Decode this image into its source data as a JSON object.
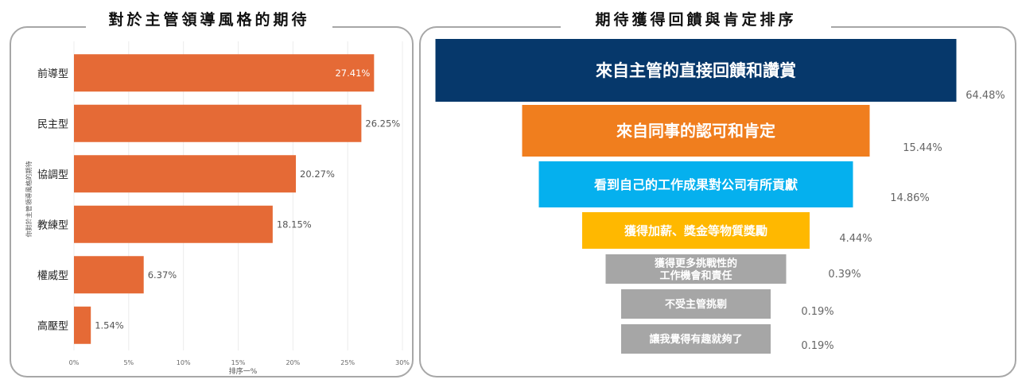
{
  "chart_data": [
    {
      "type": "bar",
      "orientation": "horizontal",
      "title": "對於主管領導風格的期待",
      "ylabel": "你對於主管領導風格的期待",
      "xlabel": "排序一%",
      "categories": [
        "前導型",
        "民主型",
        "協調型",
        "教練型",
        "權威型",
        "高壓型"
      ],
      "values": [
        27.41,
        26.25,
        20.27,
        18.15,
        6.37,
        1.54
      ],
      "value_labels": [
        "27.41%",
        "26.25%",
        "20.27%",
        "18.15%",
        "6.37%",
        "1.54%"
      ],
      "xlim": [
        0,
        30
      ],
      "xticks": [
        "0%",
        "5%",
        "10%",
        "15%",
        "20%",
        "25%",
        "30%"
      ],
      "xtick_values": [
        0,
        5,
        10,
        15,
        20,
        25,
        30
      ],
      "grid": true,
      "bar_color": "#e56a36"
    },
    {
      "type": "bar",
      "orientation": "horizontal-funnel",
      "title": "期待獲得回饋與肯定排序",
      "categories": [
        [
          "來自主管的直接回饋和讚賞"
        ],
        [
          "來自同事的認可和肯定"
        ],
        [
          "看到自己的工作成果對公司有所貢獻"
        ],
        [
          "獲得加薪、獎金等物質獎勵"
        ],
        [
          "獲得更多挑戰性的",
          "工作機會和責任"
        ],
        [
          "不受主管挑剔"
        ],
        [
          "讓我覺得有趣就夠了"
        ]
      ],
      "values": [
        64.48,
        15.44,
        14.86,
        4.44,
        0.39,
        0.19,
        0.19
      ],
      "value_labels": [
        "64.48%",
        "15.44%",
        "14.86%",
        "4.44%",
        "0.39%",
        "0.19%",
        "0.19%"
      ],
      "colors": [
        "#06386b",
        "#f07e1e",
        "#05b0ee",
        "#ffb800",
        "#a6a6a6",
        "#a6a6a6",
        "#a6a6a6"
      ]
    }
  ]
}
